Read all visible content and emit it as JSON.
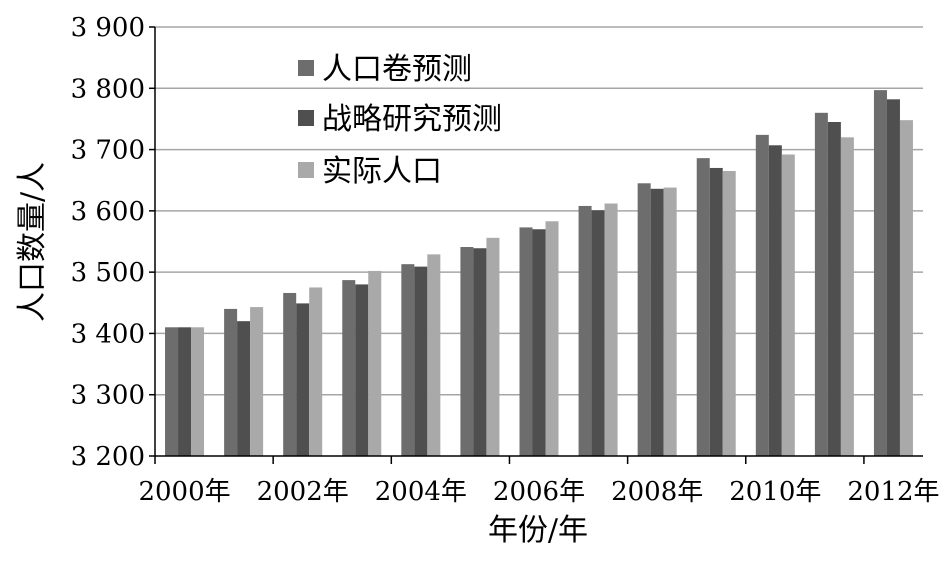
{
  "chart_data": {
    "type": "bar",
    "title": "",
    "xlabel": "年份/年",
    "ylabel": "人口数量/人",
    "ylim": [
      3200,
      3900
    ],
    "yticks": [
      3200,
      3300,
      3400,
      3500,
      3600,
      3700,
      3800,
      3900
    ],
    "ytick_labels": [
      "3 200",
      "3 300",
      "3 400",
      "3 500",
      "3 600",
      "3 700",
      "3 800",
      "3 900"
    ],
    "categories": [
      "2000年",
      "2001年",
      "2002年",
      "2003年",
      "2004年",
      "2005年",
      "2006年",
      "2007年",
      "2008年",
      "2009年",
      "2010年",
      "2011年",
      "2012年"
    ],
    "shown_x_labels": [
      "2000年",
      "2002年",
      "2004年",
      "2006年",
      "2008年",
      "2010年",
      "2012年"
    ],
    "grid": true,
    "legend_position": "top-left",
    "series": [
      {
        "name": "人口卷预测",
        "color": "#6d6d6d",
        "values": [
          3410,
          3440,
          3466,
          3487,
          3513,
          3541,
          3573,
          3608,
          3645,
          3686,
          3724,
          3760,
          3797
        ]
      },
      {
        "name": "战略研究预测",
        "color": "#4f4f4f",
        "values": [
          3410,
          3420,
          3449,
          3480,
          3509,
          3539,
          3570,
          3601,
          3636,
          3670,
          3707,
          3745,
          3782
        ]
      },
      {
        "name": "实际人口",
        "color": "#a9a9a9",
        "values": [
          3410,
          3443,
          3475,
          3502,
          3529,
          3556,
          3583,
          3612,
          3638,
          3665,
          3692,
          3720,
          3748
        ]
      }
    ]
  }
}
